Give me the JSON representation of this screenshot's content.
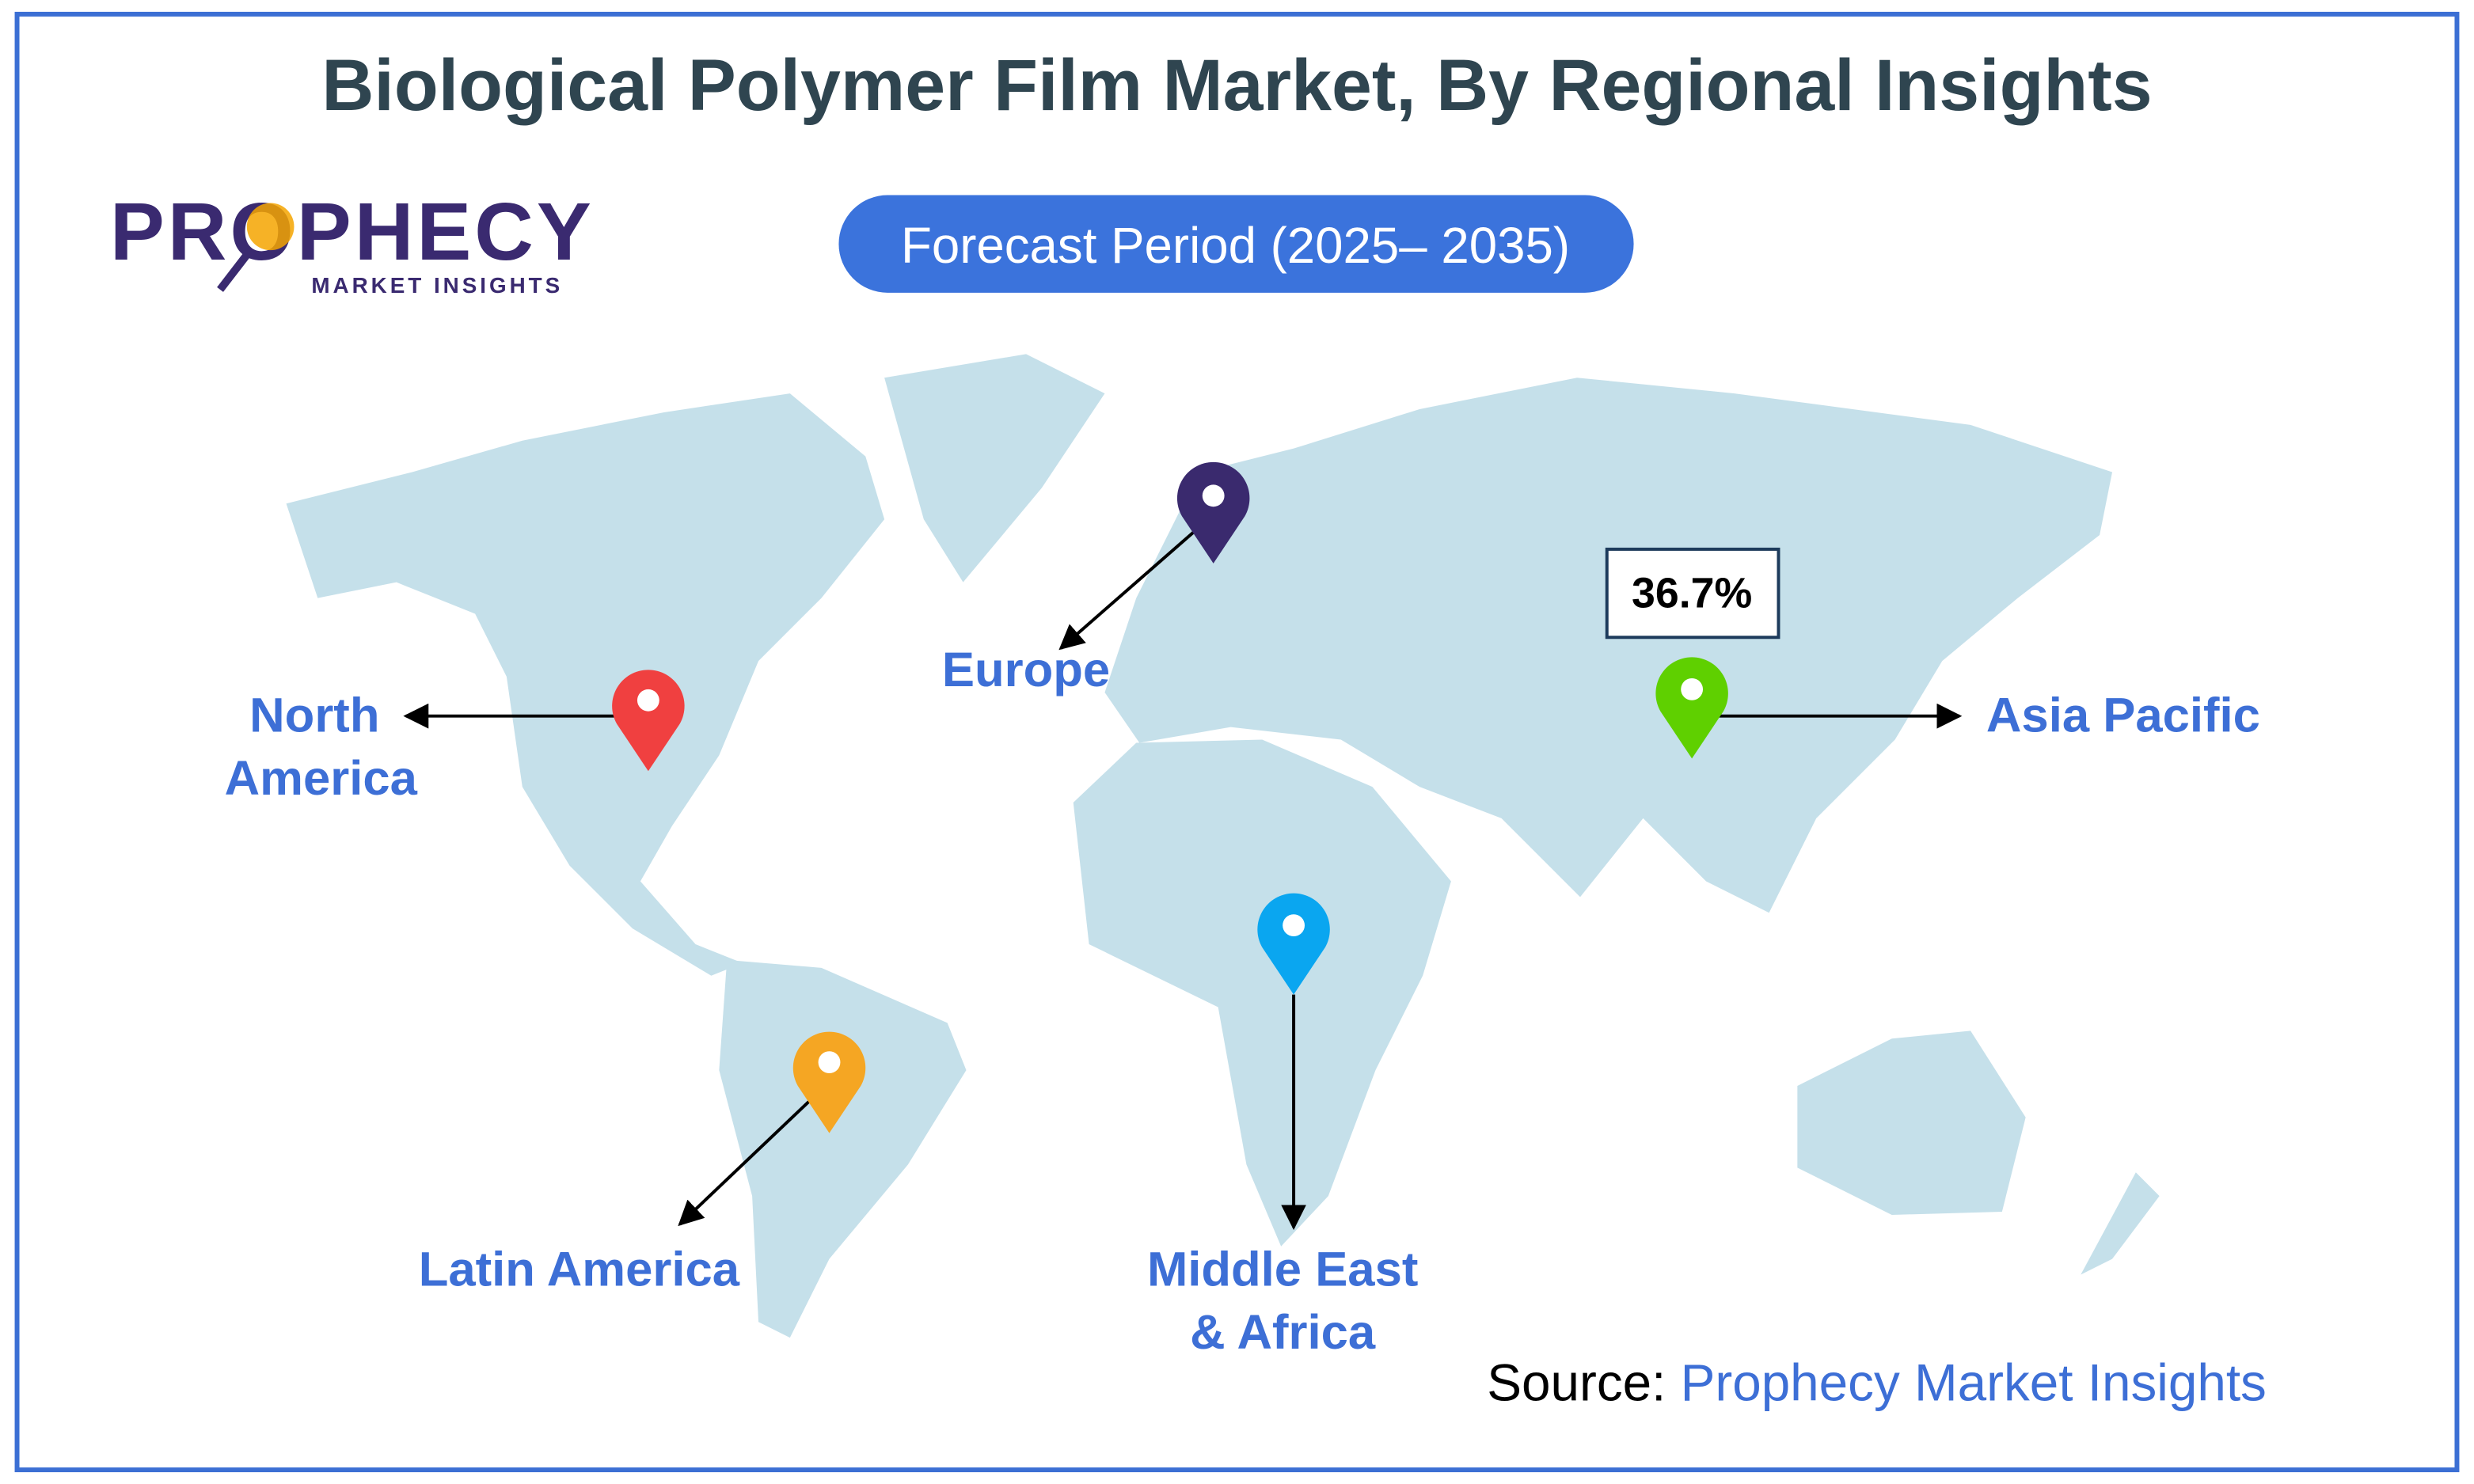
{
  "title": "Biological Polymer Film Market, By Regional Insights",
  "logo": {
    "name": "PROPHECY",
    "tagline": "MARKET INSIGHTS"
  },
  "forecast": "Forecast Period (2025– 2035)",
  "regions": [
    {
      "lines": [
        "North",
        "America"
      ]
    },
    {
      "lines": [
        "Europe"
      ]
    },
    {
      "lines": [
        "Asia Pacific"
      ]
    },
    {
      "lines": [
        "Middle East",
        "& Africa"
      ]
    },
    {
      "lines": [
        "Latin America"
      ]
    }
  ],
  "callout": "36.7%",
  "source": {
    "label": "Source:",
    "name": "Prophecy Market Insights"
  }
}
